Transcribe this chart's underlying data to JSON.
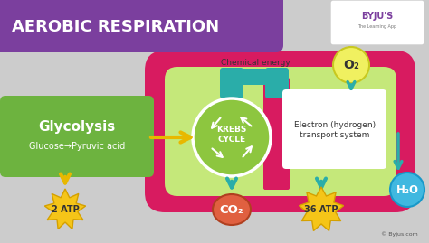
{
  "title": "AEROBIC RESPIRATION",
  "title_bg": "#7B3F9E",
  "title_color": "#FFFFFF",
  "bg_color": "#CCCCCC",
  "chemical_energy_label": "Chemical energy",
  "glycolysis_label": "Glycolysis",
  "glycolysis_sub": "Glucose→Pyruvic acid",
  "glycolysis_bg": "#6DB33F",
  "krebs_label": "KREBS\nCYCLE",
  "krebs_bg": "#8DC63F",
  "electron_label": "Electron (hydrogen)\ntransport system",
  "electron_bg": "#FFFFFF",
  "mito_outer": "#D81B60",
  "mito_inner": "#C5E87A",
  "atp2_label": "2 ATP",
  "atp36_label": "36 ATP",
  "co2_label": "CO₂",
  "o2_label": "O₂",
  "h2o_label": "H₂O",
  "atp_bg": "#F5C518",
  "co2_bg": "#E06040",
  "o2_bg": "#F0F060",
  "h2o_bg": "#40B8E0",
  "arrow_color": "#E8B800",
  "teal_arrow": "#2AADA9",
  "byju_text": "© Byjus.com"
}
